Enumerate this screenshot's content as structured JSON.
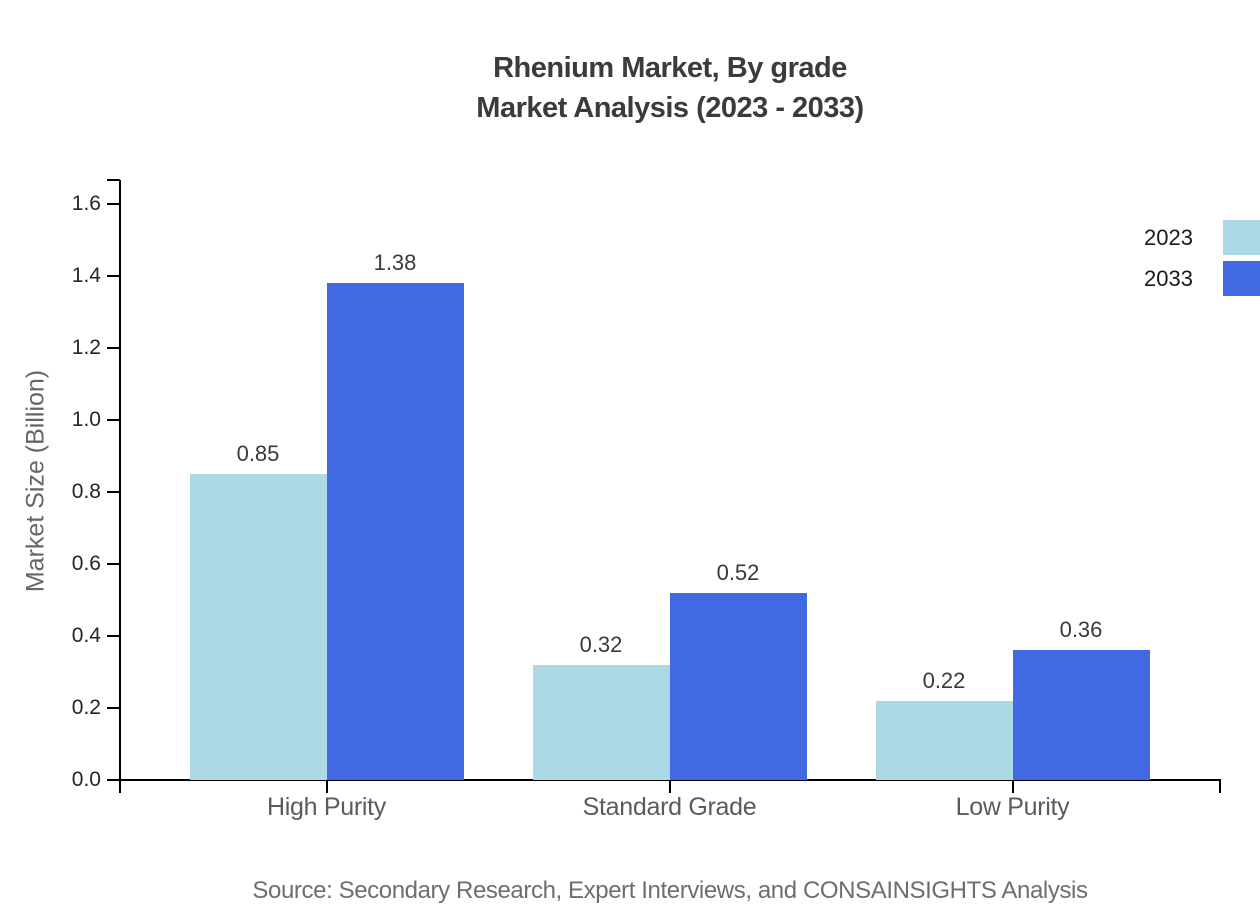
{
  "title": {
    "line1": "Rhenium Market, By grade",
    "line2": "Market Analysis (2023 - 2033)"
  },
  "source": "Source: Secondary Research, Expert Interviews, and CONSAINSIGHTS Analysis",
  "chart_data": {
    "type": "bar",
    "title": "Rhenium Market, By grade Market Analysis (2023 - 2033)",
    "categories": [
      "High Purity",
      "Standard Grade",
      "Low Purity"
    ],
    "series": [
      {
        "name": "2023",
        "color": "#ADD8E6",
        "values": [
          0.85,
          0.32,
          0.22
        ]
      },
      {
        "name": "2033",
        "color": "#4169E1",
        "values": [
          1.38,
          0.52,
          0.36
        ]
      }
    ],
    "xlabel": "",
    "ylabel": "Market Size (Billion)",
    "ylim": [
      0,
      1.6
    ],
    "ytick_step": 0.2,
    "ytick_labels": [
      "0.0",
      "0.2",
      "0.4",
      "0.6",
      "0.8",
      "1.0",
      "1.2",
      "1.4",
      "1.6"
    ],
    "bar_value_labels": [
      "0.85",
      "1.38",
      "0.32",
      "0.52",
      "0.22",
      "0.36"
    ],
    "grid": false,
    "legend_position": "upper-right-edge",
    "legend_entries": [
      "2023",
      "2033"
    ]
  }
}
